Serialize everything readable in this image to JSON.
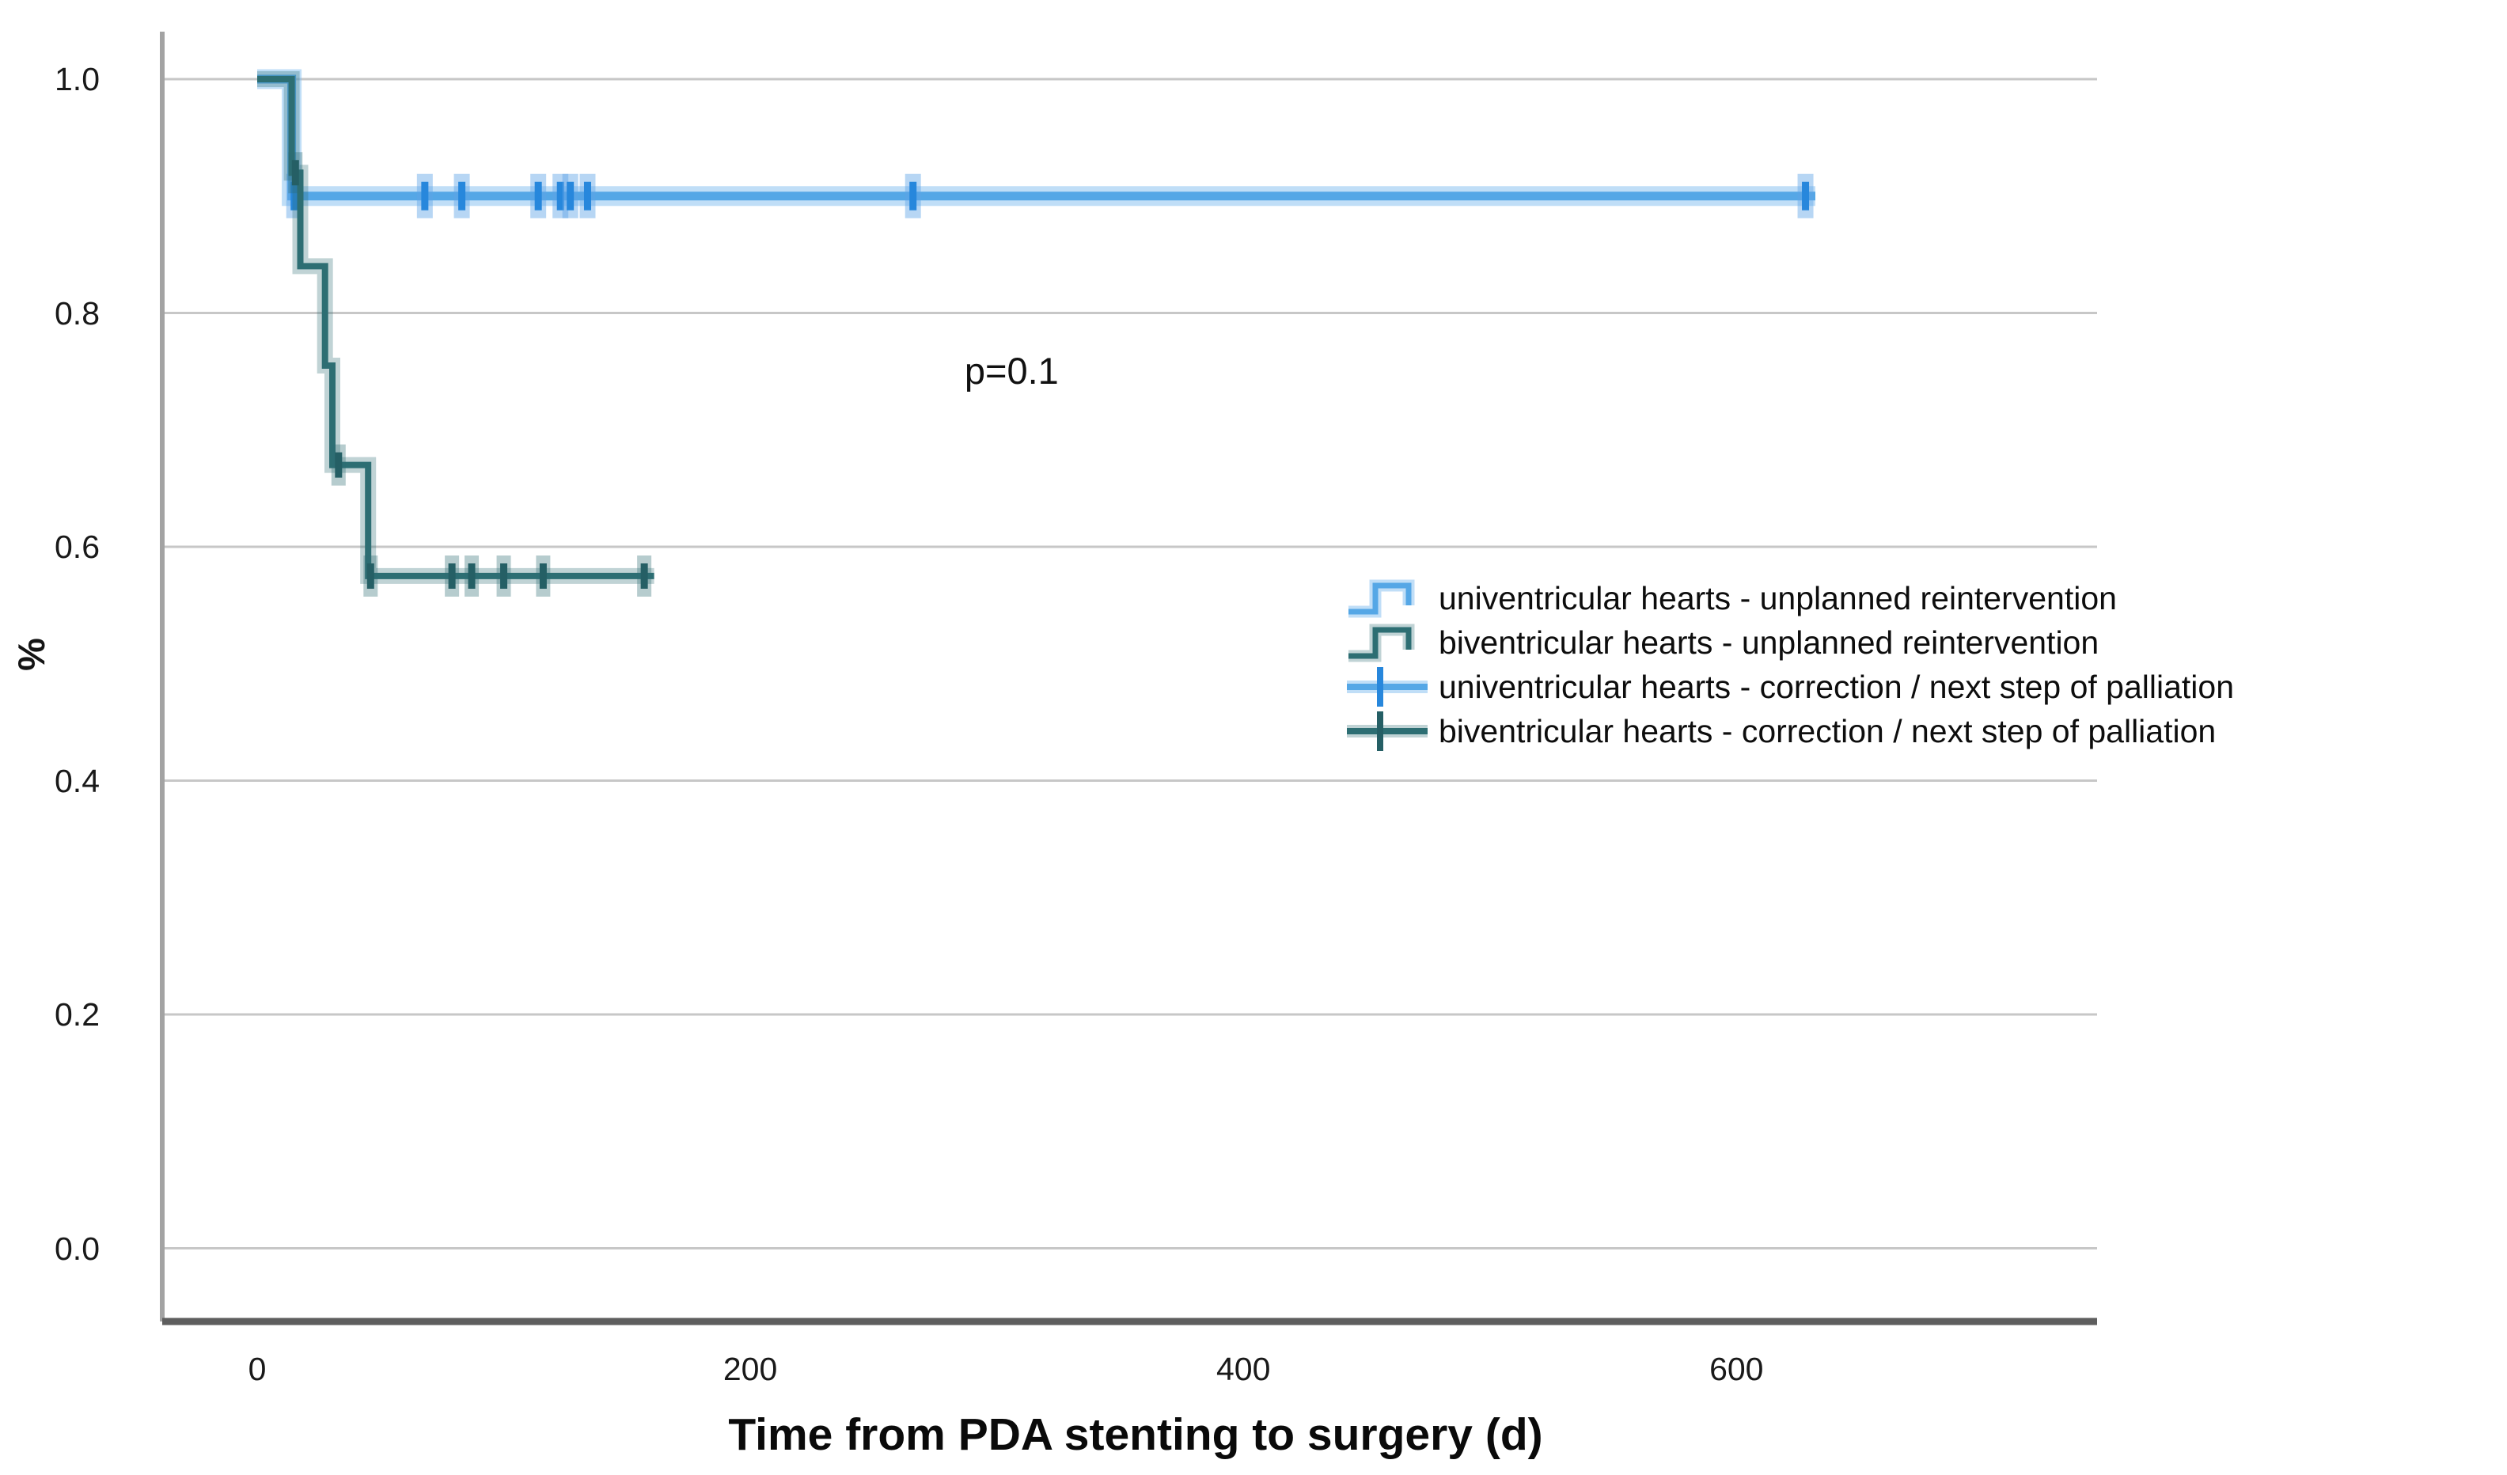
{
  "figure": {
    "y_axis_title": "%",
    "x_axis_title": "Time from PDA stenting to surgery (d)",
    "p_annotation": "p=0.1"
  },
  "legend": {
    "items": [
      {
        "label": "univentricular hearts - unplanned reintervention",
        "marker": "step",
        "series_index": 0
      },
      {
        "label": "biventricular hearts - unplanned reintervention",
        "marker": "step",
        "series_index": 1
      },
      {
        "label": "univentricular hearts - correction / next step of palliation",
        "marker": "censor",
        "series_index": 0
      },
      {
        "label": "biventricular hearts - correction / next step of palliation",
        "marker": "censor",
        "series_index": 1
      }
    ]
  },
  "chart_data": {
    "type": "line",
    "variant": "kaplan_meier_step",
    "title": "",
    "xlabel": "Time from PDA stenting to surgery (d)",
    "ylabel": "%",
    "xlim": [
      -38,
      746
    ],
    "ylim": [
      -0.065,
      1.04
    ],
    "x_ticks": [
      0,
      200,
      400,
      600
    ],
    "x_tick_labels": [
      "0",
      "200",
      "400",
      "600"
    ],
    "y_ticks": [
      1.0,
      0.8,
      0.6,
      0.4,
      0.2,
      0.0
    ],
    "y_tick_labels": [
      "1.0",
      "0.8",
      "0.6",
      "0.4",
      "0.2",
      "0.0"
    ],
    "grid": "horizontal_only",
    "legend_position": "center_right",
    "annotation": {
      "text": "p=0.1",
      "x_day": 306,
      "y_value": 0.75
    },
    "series": [
      {
        "name": "univentricular hearts",
        "event_legend": "univentricular hearts - unplanned reintervention",
        "censor_legend": "univentricular hearts - correction / next step of palliation",
        "color": "#55a7e6",
        "halo_color": "rgba(130,190,240,0.5)",
        "censor_color": "#2787dc",
        "censor_halo_color": "rgba(95,165,230,0.45)",
        "steps": [
          [
            0,
            1.0
          ],
          [
            14,
            1.0
          ],
          [
            14,
            0.9
          ],
          [
            632,
            0.9
          ]
        ],
        "censors": [
          [
            15,
            0.9
          ],
          [
            68,
            0.9
          ],
          [
            83,
            0.9
          ],
          [
            114,
            0.9
          ],
          [
            123,
            0.9
          ],
          [
            127,
            0.9
          ],
          [
            134,
            0.9
          ],
          [
            266,
            0.9
          ],
          [
            628,
            0.9
          ]
        ]
      },
      {
        "name": "biventricular hearts",
        "event_legend": "biventricular hearts - unplanned reintervention",
        "censor_legend": "biventricular hearts - correction / next step of palliation",
        "color": "#2d6e73",
        "halo_color": "rgba(45,110,115,0.30)",
        "censor_color": "#255f65",
        "censor_halo_color": "rgba(45,110,115,0.35)",
        "steps": [
          [
            0,
            1.0
          ],
          [
            14,
            1.0
          ],
          [
            14,
            0.92
          ],
          [
            17.5,
            0.92
          ],
          [
            17.5,
            0.84
          ],
          [
            27.5,
            0.84
          ],
          [
            27.5,
            0.755
          ],
          [
            30.5,
            0.755
          ],
          [
            30.5,
            0.67
          ],
          [
            45,
            0.67
          ],
          [
            45,
            0.575
          ],
          [
            161,
            0.575
          ]
        ],
        "censors": [
          [
            15.5,
            0.92
          ],
          [
            33,
            0.67
          ],
          [
            46,
            0.575
          ],
          [
            79,
            0.575
          ],
          [
            87,
            0.575
          ],
          [
            100,
            0.575
          ],
          [
            116,
            0.575
          ],
          [
            157,
            0.575
          ]
        ]
      }
    ]
  }
}
